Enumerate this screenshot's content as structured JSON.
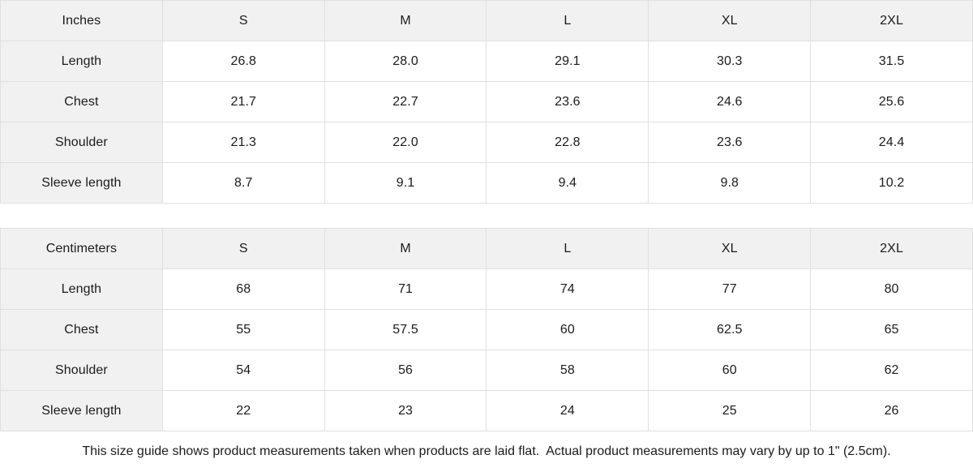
{
  "colors": {
    "header_background": "#f1f1f1",
    "border": "#e0e0e0",
    "text": "#1b1b1b",
    "page_background": "#ffffff"
  },
  "tables": [
    {
      "unit_label": "Inches",
      "sizes": [
        "S",
        "M",
        "L",
        "XL",
        "2XL"
      ],
      "rows": [
        {
          "label": "Length",
          "values": [
            "26.8",
            "28.0",
            "29.1",
            "30.3",
            "31.5"
          ]
        },
        {
          "label": "Chest",
          "values": [
            "21.7",
            "22.7",
            "23.6",
            "24.6",
            "25.6"
          ]
        },
        {
          "label": "Shoulder",
          "values": [
            "21.3",
            "22.0",
            "22.8",
            "23.6",
            "24.4"
          ]
        },
        {
          "label": "Sleeve length",
          "values": [
            "8.7",
            "9.1",
            "9.4",
            "9.8",
            "10.2"
          ]
        }
      ]
    },
    {
      "unit_label": "Centimeters",
      "sizes": [
        "S",
        "M",
        "L",
        "XL",
        "2XL"
      ],
      "rows": [
        {
          "label": "Length",
          "values": [
            "68",
            "71",
            "74",
            "77",
            "80"
          ]
        },
        {
          "label": "Chest",
          "values": [
            "55",
            "57.5",
            "60",
            "62.5",
            "65"
          ]
        },
        {
          "label": "Shoulder",
          "values": [
            "54",
            "56",
            "58",
            "60",
            "62"
          ]
        },
        {
          "label": "Sleeve length",
          "values": [
            "22",
            "23",
            "24",
            "25",
            "26"
          ]
        }
      ]
    }
  ],
  "footer": {
    "note": "This size guide shows product measurements taken when products are laid flat.  Actual product measurements may vary by up to 1\" (2.5cm)."
  }
}
